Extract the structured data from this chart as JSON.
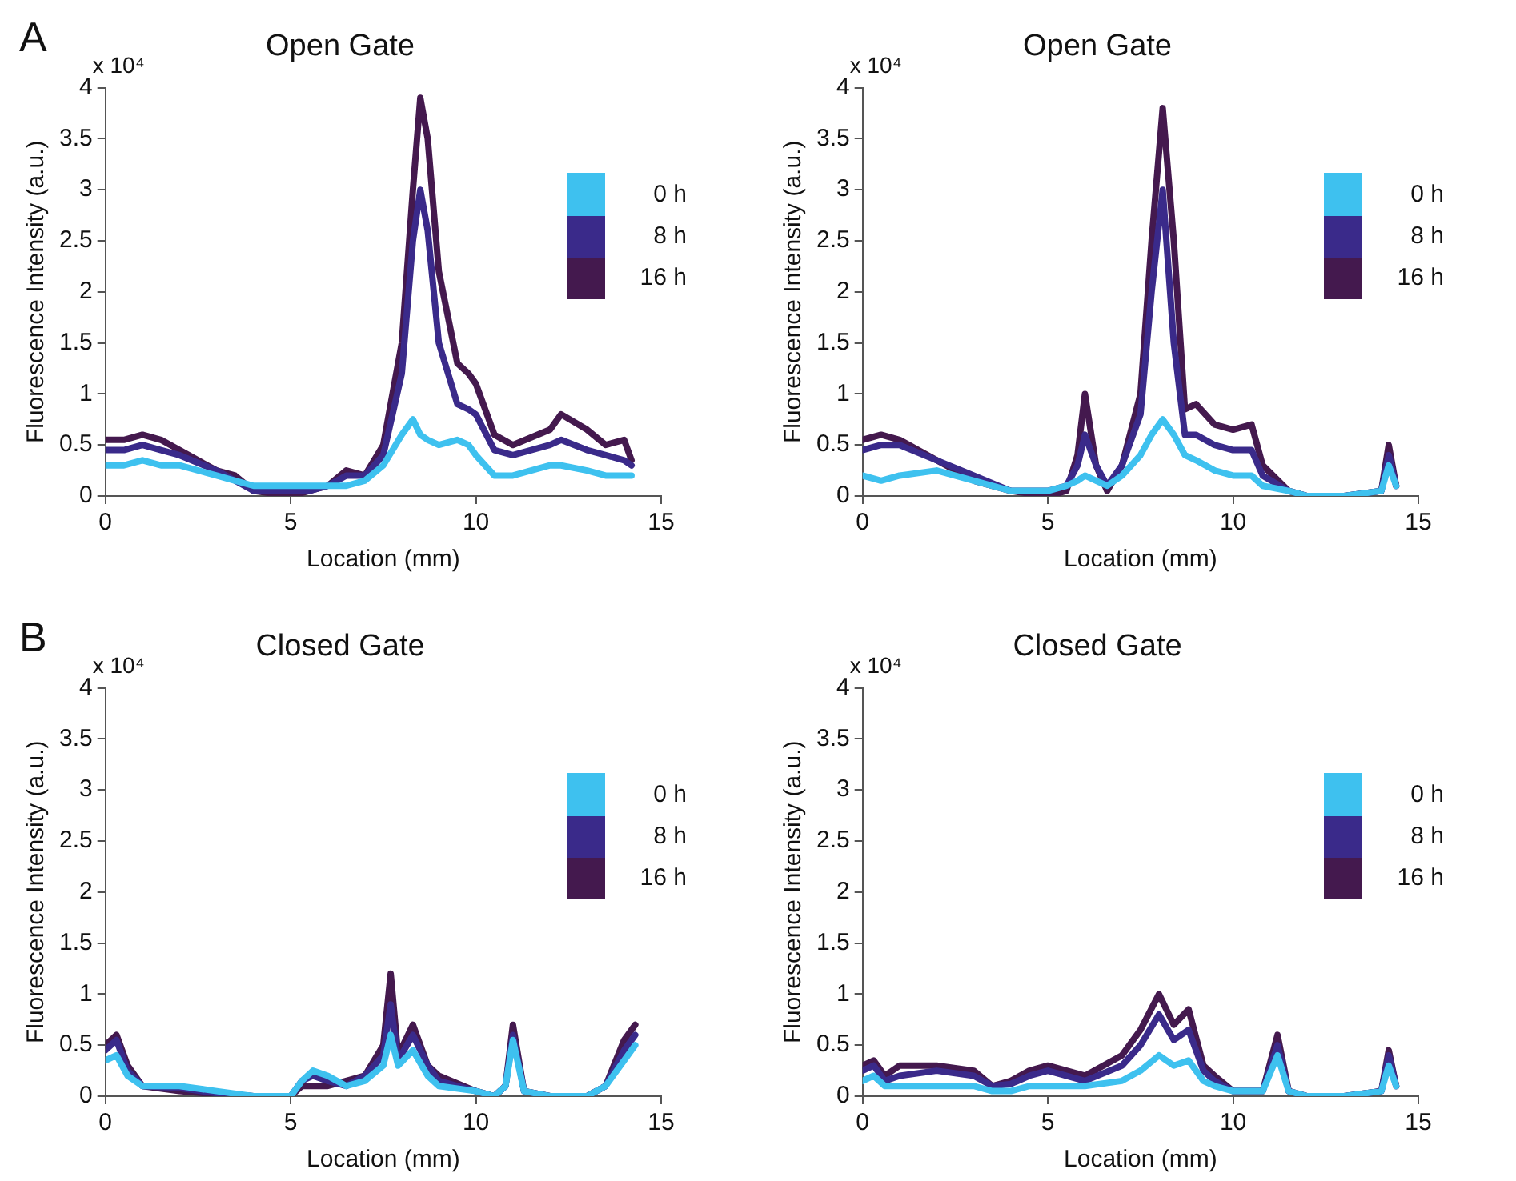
{
  "chart_data": [
    {
      "type": "line",
      "title": "Open Gate",
      "xlabel": "Location (mm)",
      "ylabel": "Fluorescence Intensity (a.u.)",
      "annotations": [
        "A",
        "x 10⁴"
      ],
      "marker": "none",
      "legend": "top right",
      "grid": false,
      "x": [
        0,
        0.5,
        1,
        1.5,
        2,
        3,
        3.5,
        4,
        5,
        5.5,
        6,
        6.5,
        7,
        7.5,
        8,
        8.3,
        8.5,
        8.7,
        9,
        9.5,
        9.8,
        10,
        10.5,
        11,
        12,
        12.3,
        13,
        13.5,
        14,
        14.2
      ],
      "series": [
        {
          "name": "0 h",
          "color": "#3ec1ef",
          "values": [
            0.3,
            0.3,
            0.35,
            0.3,
            0.3,
            0.2,
            0.15,
            0.1,
            0.1,
            0.1,
            0.1,
            0.1,
            0.15,
            0.3,
            0.6,
            0.75,
            0.6,
            0.55,
            0.5,
            0.55,
            0.5,
            0.4,
            0.2,
            0.2,
            0.3,
            0.3,
            0.25,
            0.2,
            0.2,
            0.2
          ]
        },
        {
          "name": "8 h",
          "color": "#3a2a8a",
          "values": [
            0.45,
            0.45,
            0.5,
            0.45,
            0.4,
            0.25,
            0.15,
            0.05,
            0.05,
            0.05,
            0.1,
            0.2,
            0.2,
            0.4,
            1.2,
            2.5,
            3.0,
            2.6,
            1.5,
            0.9,
            0.85,
            0.8,
            0.45,
            0.4,
            0.5,
            0.55,
            0.45,
            0.4,
            0.35,
            0.3
          ]
        },
        {
          "name": "16 h",
          "color": "#44194e",
          "values": [
            0.55,
            0.55,
            0.6,
            0.55,
            0.45,
            0.25,
            0.2,
            0.05,
            0,
            0.05,
            0.1,
            0.25,
            0.2,
            0.5,
            1.5,
            3.0,
            3.9,
            3.5,
            2.2,
            1.3,
            1.2,
            1.1,
            0.6,
            0.5,
            0.65,
            0.8,
            0.65,
            0.5,
            0.55,
            0.35
          ]
        }
      ],
      "xlim": [
        0,
        15
      ],
      "xticks": [
        0,
        5,
        10,
        15
      ],
      "ylim": [
        0,
        4
      ],
      "yticks": [
        0,
        0.5,
        1,
        1.5,
        2,
        2.5,
        3,
        3.5,
        4
      ]
    },
    {
      "type": "line",
      "title": "Open Gate",
      "xlabel": "Location (mm)",
      "ylabel": "Fluorescence Intensity (a.u.)",
      "annotations": [
        "x 10⁴"
      ],
      "marker": "none",
      "legend": "top right",
      "grid": false,
      "x": [
        0,
        0.5,
        1,
        2,
        3,
        4,
        5,
        5.5,
        5.8,
        6,
        6.3,
        6.6,
        7,
        7.5,
        7.8,
        8.1,
        8.4,
        8.7,
        9,
        9.5,
        10,
        10.5,
        10.8,
        11.5,
        12,
        13,
        14,
        14.2,
        14.4
      ],
      "series": [
        {
          "name": "0 h",
          "color": "#3ec1ef",
          "values": [
            0.2,
            0.15,
            0.2,
            0.25,
            0.15,
            0.05,
            0.05,
            0.1,
            0.15,
            0.2,
            0.15,
            0.1,
            0.2,
            0.4,
            0.6,
            0.75,
            0.6,
            0.4,
            0.35,
            0.25,
            0.2,
            0.2,
            0.1,
            0.05,
            0,
            0,
            0.05,
            0.3,
            0.1
          ]
        },
        {
          "name": "8 h",
          "color": "#3a2a8a",
          "values": [
            0.45,
            0.5,
            0.5,
            0.35,
            0.2,
            0.05,
            0.05,
            0.1,
            0.3,
            0.6,
            0.3,
            0.1,
            0.3,
            0.8,
            2.0,
            3.0,
            1.5,
            0.6,
            0.6,
            0.5,
            0.45,
            0.45,
            0.2,
            0.05,
            0,
            0,
            0.05,
            0.4,
            0.1
          ]
        },
        {
          "name": "16 h",
          "color": "#44194e",
          "values": [
            0.55,
            0.6,
            0.55,
            0.35,
            0.15,
            0.05,
            0,
            0.05,
            0.4,
            1.0,
            0.3,
            0.05,
            0.3,
            1.0,
            2.5,
            3.8,
            2.5,
            0.85,
            0.9,
            0.7,
            0.65,
            0.7,
            0.3,
            0.05,
            0,
            0,
            0.05,
            0.5,
            0.1
          ]
        }
      ],
      "xlim": [
        0,
        15
      ],
      "xticks": [
        0,
        5,
        10,
        15
      ],
      "ylim": [
        0,
        4
      ],
      "yticks": [
        0,
        0.5,
        1,
        1.5,
        2,
        2.5,
        3,
        3.5,
        4
      ]
    },
    {
      "type": "line",
      "title": "Closed Gate",
      "xlabel": "Location (mm)",
      "ylabel": "Fluorescence Intensity (a.u.)",
      "annotations": [
        "B",
        "x 10⁴"
      ],
      "marker": "none",
      "legend": "top right",
      "grid": false,
      "x": [
        0,
        0.3,
        0.6,
        1,
        2,
        3,
        4,
        5,
        5.3,
        5.6,
        6,
        6.5,
        7,
        7.5,
        7.7,
        7.9,
        8.3,
        8.7,
        9,
        10,
        10.5,
        10.8,
        11,
        11.3,
        12,
        13,
        13.5,
        14,
        14.3
      ],
      "series": [
        {
          "name": "0 h",
          "color": "#3ec1ef",
          "values": [
            0.35,
            0.4,
            0.2,
            0.1,
            0.1,
            0.05,
            0,
            0,
            0.15,
            0.25,
            0.2,
            0.1,
            0.15,
            0.3,
            0.6,
            0.3,
            0.45,
            0.2,
            0.1,
            0.05,
            0,
            0.1,
            0.55,
            0.05,
            0,
            0,
            0.1,
            0.35,
            0.5
          ]
        },
        {
          "name": "8 h",
          "color": "#3a2a8a",
          "values": [
            0.45,
            0.55,
            0.25,
            0.1,
            0.08,
            0.03,
            0,
            0,
            0.15,
            0.2,
            0.15,
            0.1,
            0.2,
            0.4,
            0.9,
            0.35,
            0.6,
            0.3,
            0.15,
            0.05,
            0,
            0.1,
            0.6,
            0.05,
            0,
            0,
            0.1,
            0.45,
            0.6
          ]
        },
        {
          "name": "16 h",
          "color": "#44194e",
          "values": [
            0.5,
            0.6,
            0.3,
            0.1,
            0.05,
            0.02,
            0,
            0,
            0.1,
            0.1,
            0.1,
            0.15,
            0.2,
            0.5,
            1.2,
            0.4,
            0.7,
            0.3,
            0.2,
            0.05,
            0,
            0.1,
            0.7,
            0.05,
            0,
            0,
            0.1,
            0.55,
            0.7
          ]
        }
      ],
      "xlim": [
        0,
        15
      ],
      "xticks": [
        0,
        5,
        10,
        15
      ],
      "ylim": [
        0,
        4
      ],
      "yticks": [
        0,
        0.5,
        1,
        1.5,
        2,
        2.5,
        3,
        3.5,
        4
      ]
    },
    {
      "type": "line",
      "title": "Closed Gate",
      "xlabel": "Location (mm)",
      "ylabel": "Fluorescence Intensity (a.u.)",
      "annotations": [
        "x 10⁴"
      ],
      "marker": "none",
      "legend": "top right",
      "grid": false,
      "x": [
        0,
        0.3,
        0.6,
        1,
        2,
        3,
        3.5,
        4,
        4.5,
        5,
        6,
        7,
        7.5,
        8,
        8.4,
        8.8,
        9.2,
        9.5,
        10,
        10.8,
        11.2,
        11.5,
        12,
        13,
        14,
        14.2,
        14.4
      ],
      "series": [
        {
          "name": "0 h",
          "color": "#3ec1ef",
          "values": [
            0.15,
            0.2,
            0.1,
            0.1,
            0.1,
            0.1,
            0.05,
            0.05,
            0.1,
            0.1,
            0.1,
            0.15,
            0.25,
            0.4,
            0.3,
            0.35,
            0.15,
            0.1,
            0.05,
            0.05,
            0.4,
            0.05,
            0,
            0,
            0.05,
            0.3,
            0.1
          ]
        },
        {
          "name": "8 h",
          "color": "#3a2a8a",
          "values": [
            0.25,
            0.3,
            0.15,
            0.2,
            0.25,
            0.2,
            0.1,
            0.12,
            0.2,
            0.25,
            0.15,
            0.3,
            0.5,
            0.8,
            0.55,
            0.65,
            0.25,
            0.15,
            0.05,
            0.05,
            0.5,
            0.05,
            0,
            0,
            0.05,
            0.4,
            0.1
          ]
        },
        {
          "name": "16 h",
          "color": "#44194e",
          "values": [
            0.3,
            0.35,
            0.2,
            0.3,
            0.3,
            0.25,
            0.1,
            0.15,
            0.25,
            0.3,
            0.2,
            0.4,
            0.65,
            1.0,
            0.7,
            0.85,
            0.3,
            0.2,
            0.05,
            0.05,
            0.6,
            0.05,
            0,
            0,
            0.05,
            0.45,
            0.1
          ]
        }
      ],
      "xlim": [
        0,
        15
      ],
      "xticks": [
        0,
        5,
        10,
        15
      ],
      "ylim": [
        0,
        4
      ],
      "yticks": [
        0,
        0.5,
        1,
        1.5,
        2,
        2.5,
        3,
        3.5,
        4
      ]
    }
  ]
}
